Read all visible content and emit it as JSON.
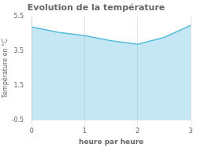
{
  "chart_data": {
    "type": "area",
    "title": "Evolution de la température",
    "xlabel": "heure par heure",
    "ylabel": "Température en °C",
    "x": [
      0,
      0.5,
      1.0,
      1.5,
      2.0,
      2.5,
      3.0
    ],
    "values": [
      4.9,
      4.6,
      4.4,
      4.1,
      3.9,
      4.3,
      5.0
    ],
    "color": "#55bbdd",
    "xlim": [
      0,
      3
    ],
    "xticks": [
      0,
      1,
      2,
      3
    ],
    "ylim": [
      -0.5,
      5.5
    ],
    "yticks": [
      -0.5,
      1.5,
      3.5,
      5.5
    ],
    "grid": "x"
  }
}
